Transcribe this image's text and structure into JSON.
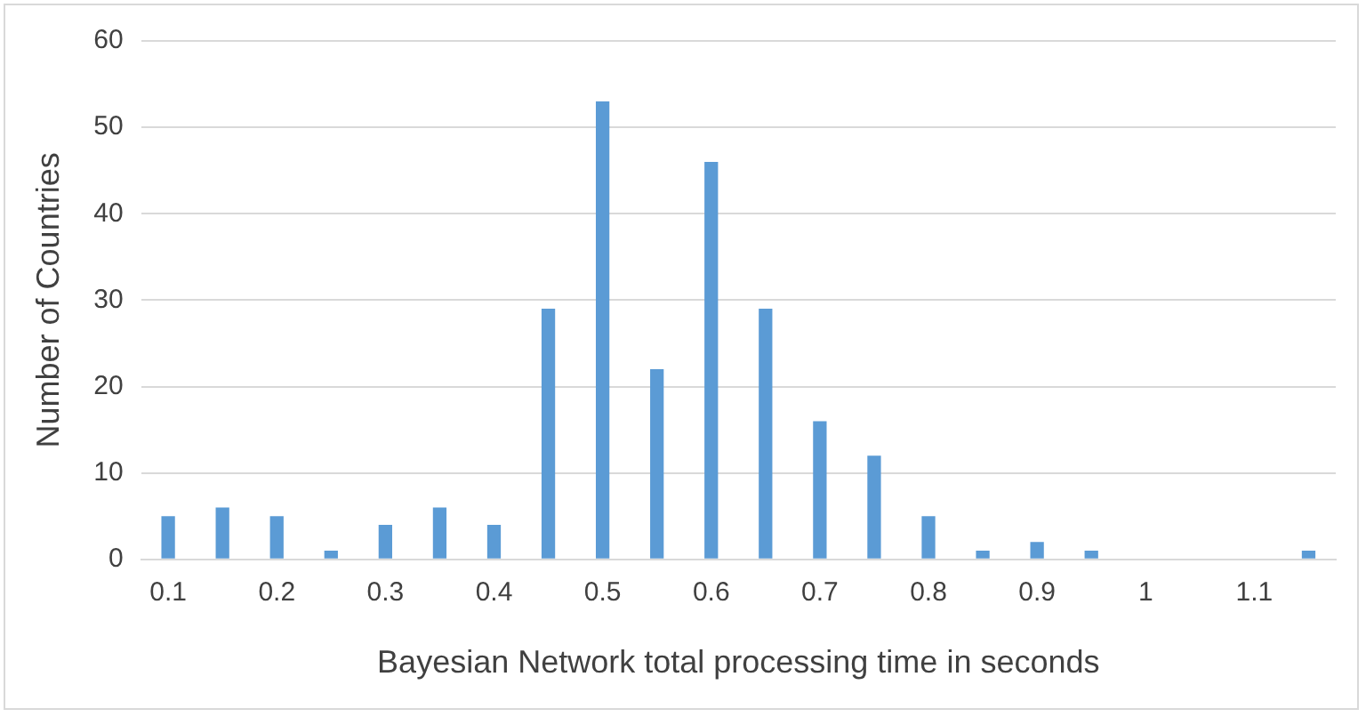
{
  "chart_data": {
    "type": "bar",
    "xlabel": "Bayesian Network total processing time in seconds",
    "ylabel": "Number of Countries",
    "categories": [
      "0.1",
      null,
      "0.2",
      null,
      "0.3",
      null,
      "0.4",
      null,
      "0.5",
      null,
      "0.6",
      null,
      "0.7",
      null,
      "0.8",
      null,
      "0.9",
      null,
      "1",
      null,
      "1.1",
      null
    ],
    "values": [
      5,
      6,
      5,
      1,
      4,
      6,
      4,
      29,
      53,
      22,
      46,
      29,
      16,
      12,
      5,
      1,
      2,
      1,
      0,
      0,
      0,
      1
    ],
    "color": "#5b9bd5",
    "ylim": [
      0,
      60
    ],
    "yticks": [
      0,
      10,
      20,
      30,
      40,
      50,
      60
    ],
    "grid": "y",
    "legend": false
  }
}
